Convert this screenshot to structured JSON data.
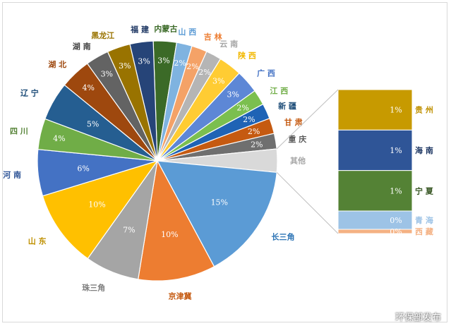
{
  "chart_data": {
    "type": "pie",
    "subtype": "pie-of-pie",
    "slices": [
      {
        "label": "内蒙古",
        "value": 3,
        "display": "3%",
        "color": "#3b6a27",
        "labelColor": "#3b6a27"
      },
      {
        "label": "山 西",
        "value": 2,
        "display": "2%",
        "color": "#7fb3e0",
        "labelColor": "#5b9bd5"
      },
      {
        "label": "吉 林",
        "value": 2,
        "display": "2%",
        "color": "#f4a267",
        "labelColor": "#ed7d31"
      },
      {
        "label": "云 南",
        "value": 2,
        "display": "2%",
        "color": "#b5b5b5",
        "labelColor": "#a5a5a5"
      },
      {
        "label": "陕 西",
        "value": 3,
        "display": "3%",
        "color": "#ffcc33",
        "labelColor": "#f2b800"
      },
      {
        "label": "广 西",
        "value": 3,
        "display": "3%",
        "color": "#5d87d6",
        "labelColor": "#4472c4"
      },
      {
        "label": "江 西",
        "value": 2,
        "display": "2%",
        "color": "#7bbf4f",
        "labelColor": "#70ad47"
      },
      {
        "label": "新 疆",
        "value": 2,
        "display": "2%",
        "color": "#1f63b5",
        "labelColor": "#1f4e79"
      },
      {
        "label": "甘 肃",
        "value": 2,
        "display": "2%",
        "color": "#c55a11",
        "labelColor": "#c55a11"
      },
      {
        "label": "重 庆",
        "value": 2,
        "display": "2%",
        "color": "#6f6f6f",
        "labelColor": "#595959"
      },
      {
        "label": "其他",
        "value": 3,
        "display": "",
        "color": "#d9d9d9",
        "labelColor": "#a5a5a5"
      },
      {
        "label": "长三角",
        "value": 15,
        "display": "15%",
        "color": "#5b9bd5",
        "labelColor": "#2e75b6"
      },
      {
        "label": "京津冀",
        "value": 10,
        "display": "10%",
        "color": "#ed7d31",
        "labelColor": "#c55a11"
      },
      {
        "label": "珠三角",
        "value": 7,
        "display": "7%",
        "color": "#a5a5a5",
        "labelColor": "#7f7f7f"
      },
      {
        "label": "山 东",
        "value": 10,
        "display": "10%",
        "color": "#ffc000",
        "labelColor": "#bf9000"
      },
      {
        "label": "河 南",
        "value": 6,
        "display": "6%",
        "color": "#4472c4",
        "labelColor": "#2f5597"
      },
      {
        "label": "四 川",
        "value": 4,
        "display": "4%",
        "color": "#70ad47",
        "labelColor": "#548235"
      },
      {
        "label": "辽 宁",
        "value": 5,
        "display": "5%",
        "color": "#255e91",
        "labelColor": "#1f4e79"
      },
      {
        "label": "湖 北",
        "value": 4,
        "display": "4%",
        "color": "#9e480e",
        "labelColor": "#9e480e"
      },
      {
        "label": "湖 南",
        "value": 3,
        "display": "3%",
        "color": "#636363",
        "labelColor": "#404040"
      },
      {
        "label": "黑龙江",
        "value": 3,
        "display": "3%",
        "color": "#997300",
        "labelColor": "#997300"
      },
      {
        "label": "福 建",
        "value": 3,
        "display": "3%",
        "color": "#264478",
        "labelColor": "#1f3864"
      }
    ],
    "secondary": {
      "of": "其他",
      "type": "stacked-bar",
      "items": [
        {
          "label": "贵 州",
          "value": 1,
          "display": "1%",
          "color": "#c79a00",
          "labelColor": "#bf9000"
        },
        {
          "label": "海 南",
          "value": 1,
          "display": "1%",
          "color": "#2f5597",
          "labelColor": "#1f3864"
        },
        {
          "label": "宁 夏",
          "value": 1,
          "display": "1%",
          "color": "#548235",
          "labelColor": "#375623"
        },
        {
          "label": "青 海",
          "value": 0.4,
          "display": "0%",
          "color": "#9dc3e6",
          "labelColor": "#9dc3e6"
        },
        {
          "label": "西 藏",
          "value": 0.15,
          "display": "0%",
          "color": "#f4b183",
          "labelColor": "#f4b183"
        }
      ]
    }
  },
  "watermark": "环保部发布"
}
